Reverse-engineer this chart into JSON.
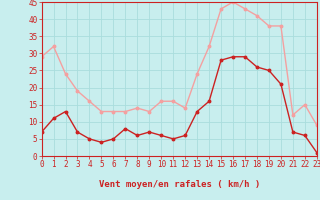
{
  "hours": [
    0,
    1,
    2,
    3,
    4,
    5,
    6,
    7,
    8,
    9,
    10,
    11,
    12,
    13,
    14,
    15,
    16,
    17,
    18,
    19,
    20,
    21,
    22,
    23
  ],
  "wind_avg": [
    7,
    11,
    13,
    7,
    5,
    4,
    5,
    8,
    6,
    7,
    6,
    5,
    6,
    13,
    16,
    28,
    29,
    29,
    26,
    25,
    21,
    7,
    6,
    1
  ],
  "wind_gust": [
    29,
    32,
    24,
    19,
    16,
    13,
    13,
    13,
    14,
    13,
    16,
    16,
    14,
    24,
    32,
    43,
    45,
    43,
    41,
    38,
    38,
    12,
    15,
    9
  ],
  "color_avg": "#cc2222",
  "color_gust": "#f4a0a0",
  "bg_color": "#c8eeee",
  "grid_color": "#aadddd",
  "xlabel": "Vent moyen/en rafales ( km/h )",
  "ylim": [
    0,
    45
  ],
  "yticks": [
    0,
    5,
    10,
    15,
    20,
    25,
    30,
    35,
    40,
    45
  ],
  "tick_fontsize": 5.5,
  "xlabel_fontsize": 6.5
}
